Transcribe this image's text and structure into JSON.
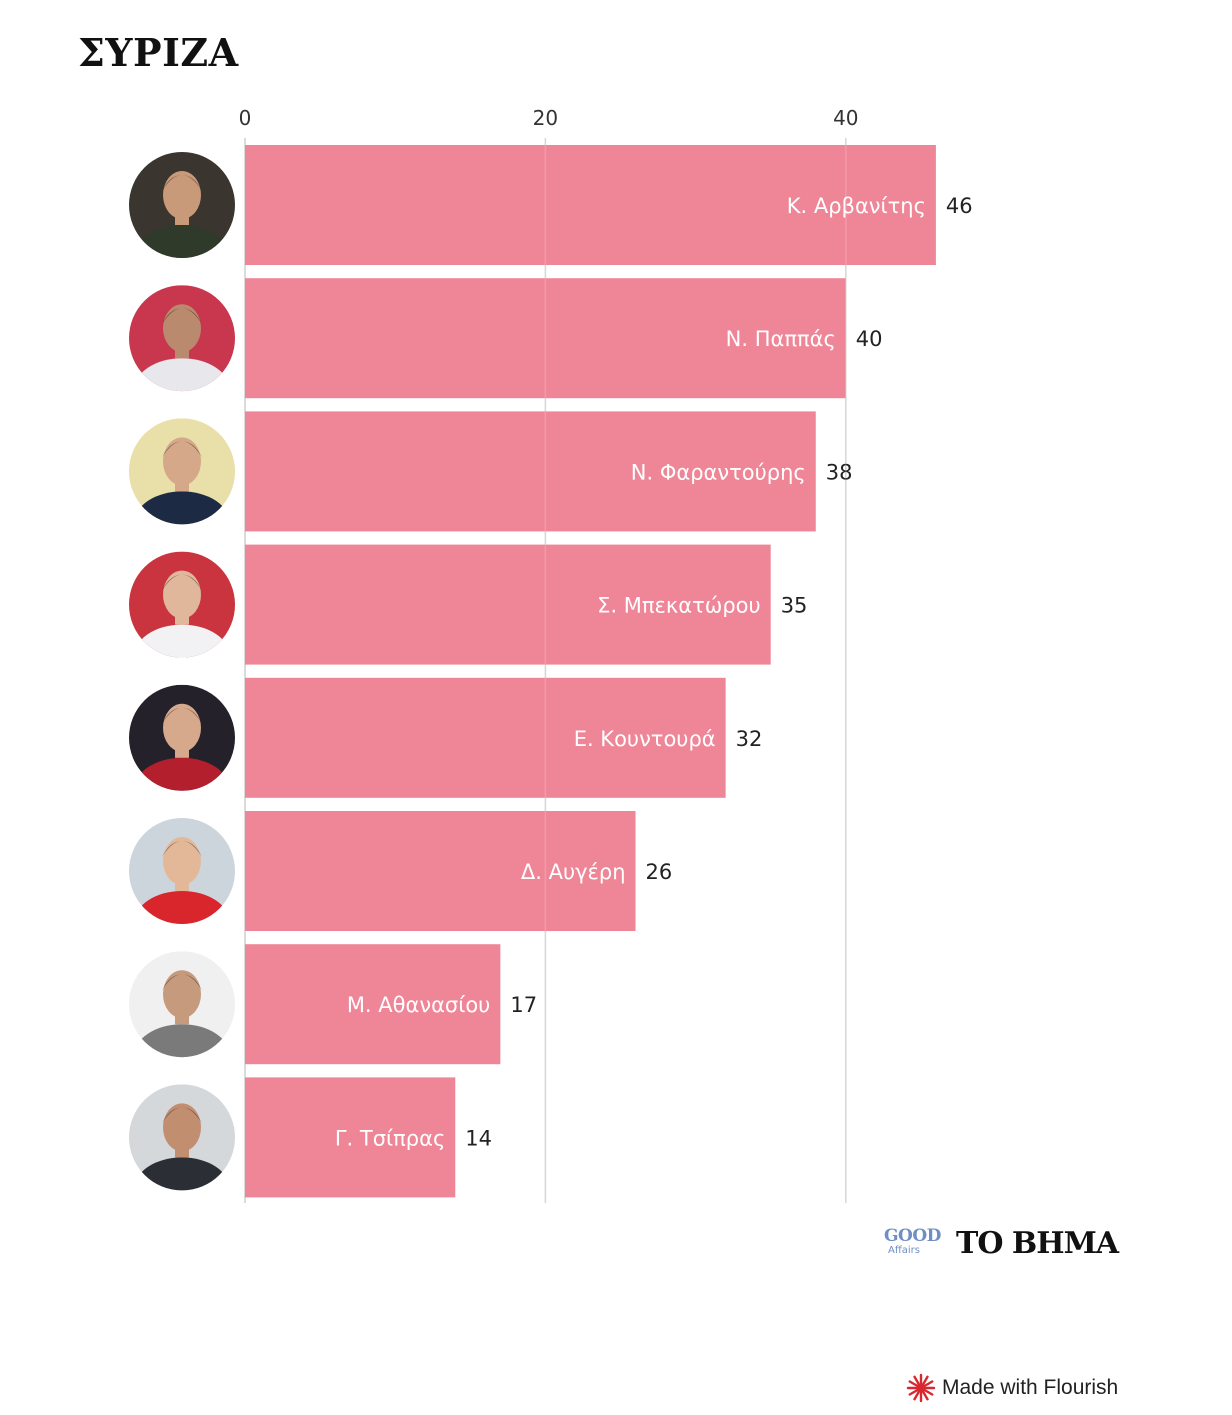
{
  "chart_data": {
    "type": "bar",
    "orientation": "horizontal",
    "title": "ΣΥΡΙΖΑ",
    "categories": [
      "Κ. Αρβανίτης",
      "Ν. Παππάς",
      "Ν. Φαραντούρης",
      "Σ. Μπεκατώρου",
      "Ε. Κουντουρά",
      "Δ. Αυγέρη",
      "Μ. Αθανασίου",
      "Γ. Τσίπρας"
    ],
    "values": [
      46,
      40,
      38,
      35,
      32,
      26,
      17,
      14
    ],
    "xticks": [
      0,
      20,
      40
    ],
    "xlim": [
      0,
      48
    ],
    "grid": true,
    "bar_color": "#ee8295"
  },
  "avatars": [
    {
      "icon": "avatar-photo",
      "bg": "#3b3530",
      "skin": "#c89a7a",
      "shirt": "#2f3a2b"
    },
    {
      "icon": "avatar-photo",
      "bg": "#c8374d",
      "skin": "#b98a6e",
      "shirt": "#e8e8ec"
    },
    {
      "icon": "avatar-photo",
      "bg": "#e9dfa9",
      "skin": "#d4a888",
      "shirt": "#1c2a44"
    },
    {
      "icon": "avatar-photo",
      "bg": "#c9343f",
      "skin": "#e0b79a",
      "shirt": "#f2f2f4"
    },
    {
      "icon": "avatar-photo",
      "bg": "#24212b",
      "skin": "#d6a98c",
      "shirt": "#b31f2c"
    },
    {
      "icon": "avatar-photo",
      "bg": "#cdd5dc",
      "skin": "#e3b899",
      "shirt": "#d8262c"
    },
    {
      "icon": "avatar-photo",
      "bg": "#f0f0f0",
      "skin": "#c69a7c",
      "shirt": "#7a7a7a"
    },
    {
      "icon": "avatar-photo",
      "bg": "#d4d8da",
      "skin": "#c28e70",
      "shirt": "#2b2e35"
    }
  ],
  "branding": {
    "good": "GOOD",
    "affairs": "Affairs",
    "tobhma": "ΤΟ ΒΗΜΑ",
    "flourish": "Made with Flourish",
    "flourish_icon": "flourish-logo-icon",
    "flourish_color": "#d7282f"
  }
}
